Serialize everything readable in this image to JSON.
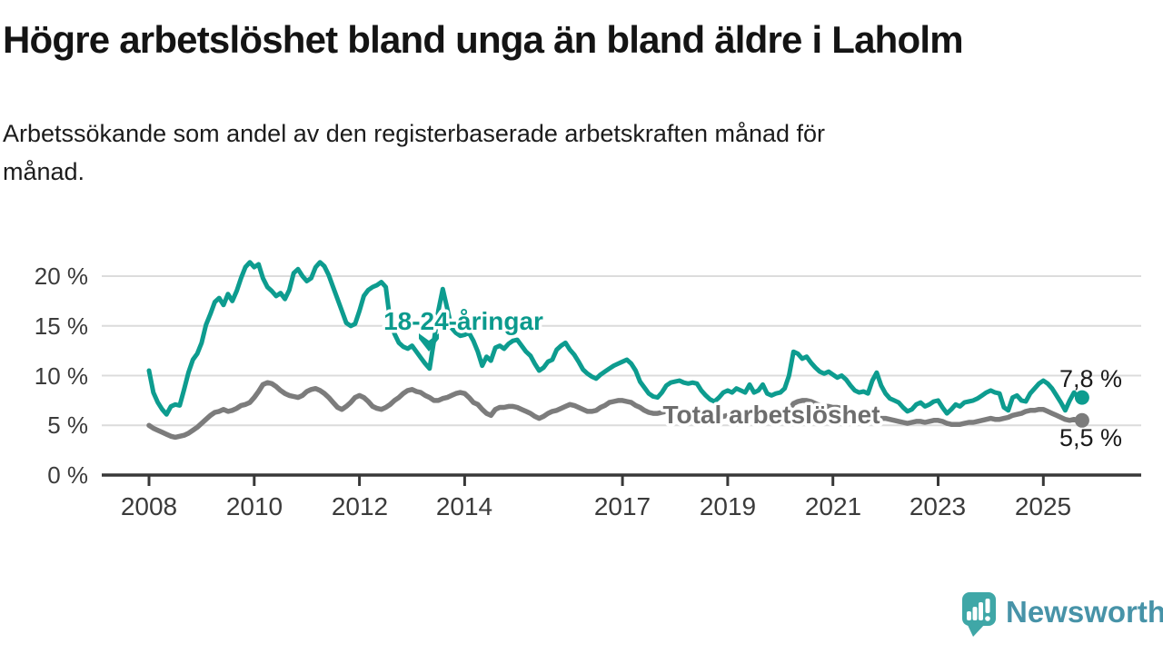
{
  "header": {
    "title": "Högre arbetslöshet bland unga än bland äldre i Laholm",
    "subtitle_lines": [
      "Arbetssökande som andel av den registerbaserade arbetskraften månad för",
      "månad."
    ]
  },
  "chart_data": {
    "type": "line",
    "unit": "%",
    "grid": "horizontal",
    "legend_position": "inline-labels",
    "x_start_year": 2008,
    "x_interval": "monthly",
    "x_range": [
      2008.0,
      2025.75
    ],
    "ylim": [
      0,
      22
    ],
    "y_ticks": [
      {
        "value": 0,
        "label": "0 %"
      },
      {
        "value": 5,
        "label": "5 %"
      },
      {
        "value": 10,
        "label": "10 %"
      },
      {
        "value": 15,
        "label": "15 %"
      },
      {
        "value": 20,
        "label": "20 %"
      }
    ],
    "x_ticks": [
      {
        "value": 2008,
        "label": "2008"
      },
      {
        "value": 2010,
        "label": "2010"
      },
      {
        "value": 2012,
        "label": "2012"
      },
      {
        "value": 2014,
        "label": "2014"
      },
      {
        "value": 2017,
        "label": "2017"
      },
      {
        "value": 2019,
        "label": "2019"
      },
      {
        "value": 2021,
        "label": "2021"
      },
      {
        "value": 2023,
        "label": "2023"
      },
      {
        "value": 2025,
        "label": "2025"
      }
    ],
    "series": [
      {
        "id": "youth",
        "name": "18-24-åringar",
        "color": "#0d9c8f",
        "label_color": "#0b9a8d",
        "width": 5,
        "end_value": 7.8,
        "end_label": "7,8 %",
        "values": [
          10.5,
          8.3,
          7.3,
          6.6,
          6.1,
          6.9,
          7.1,
          7.0,
          8.6,
          10.3,
          11.6,
          12.2,
          13.3,
          15.1,
          16.2,
          17.4,
          17.8,
          17.1,
          18.2,
          17.5,
          18.5,
          19.8,
          20.9,
          21.4,
          20.9,
          21.2,
          19.8,
          18.9,
          18.5,
          18.0,
          18.3,
          17.7,
          18.6,
          20.3,
          20.7,
          20.0,
          19.5,
          19.8,
          20.9,
          21.4,
          21.0,
          20.1,
          18.9,
          17.7,
          16.5,
          15.3,
          15.0,
          15.2,
          16.5,
          18.0,
          18.6,
          18.9,
          19.1,
          19.4,
          18.9,
          15.5,
          14.2,
          13.3,
          12.9,
          12.7,
          13.0,
          12.4,
          11.8,
          11.2,
          10.7,
          13.5,
          16.5,
          18.7,
          16.8,
          14.8,
          14.3,
          14.0,
          14.1,
          14.3,
          13.5,
          12.4,
          11.0,
          11.9,
          11.5,
          12.8,
          13.0,
          12.7,
          13.2,
          13.5,
          13.6,
          13.0,
          12.4,
          12.0,
          11.2,
          10.5,
          10.8,
          11.4,
          11.6,
          12.6,
          13.0,
          13.3,
          12.6,
          12.1,
          11.4,
          10.6,
          10.2,
          9.9,
          9.7,
          10.1,
          10.4,
          10.7,
          11.0,
          11.2,
          11.4,
          11.6,
          11.2,
          10.5,
          9.4,
          8.8,
          8.2,
          7.9,
          7.8,
          8.3,
          9.0,
          9.3,
          9.4,
          9.5,
          9.3,
          9.2,
          9.3,
          9.2,
          8.5,
          8.0,
          7.6,
          7.4,
          7.8,
          8.3,
          8.5,
          8.3,
          8.7,
          8.5,
          8.3,
          9.1,
          8.3,
          8.5,
          9.1,
          8.2,
          8.0,
          8.2,
          8.3,
          8.7,
          10.0,
          12.4,
          12.2,
          11.7,
          11.9,
          11.3,
          10.8,
          10.4,
          10.2,
          10.4,
          10.1,
          9.8,
          10.0,
          9.6,
          9.0,
          8.5,
          8.3,
          8.4,
          8.2,
          9.5,
          10.3,
          9.0,
          8.2,
          7.7,
          7.5,
          7.3,
          6.8,
          6.4,
          6.6,
          7.1,
          7.3,
          6.9,
          7.1,
          7.4,
          7.5,
          6.8,
          6.2,
          6.6,
          7.1,
          6.9,
          7.3,
          7.4,
          7.5,
          7.7,
          8.0,
          8.3,
          8.5,
          8.3,
          8.2,
          6.8,
          6.5,
          7.8,
          8.0,
          7.5,
          7.4,
          8.2,
          8.7,
          9.2,
          9.5,
          9.2,
          8.7,
          8.0,
          7.3,
          6.5,
          7.5,
          8.3,
          7.8
        ]
      },
      {
        "id": "total",
        "name": "Total arbetslöshet",
        "color": "#7c7c7c",
        "label_color": "#6d6d6d",
        "width": 5.5,
        "end_value": 5.5,
        "end_label": "5,5 %",
        "values": [
          5.0,
          4.7,
          4.5,
          4.3,
          4.1,
          3.9,
          3.8,
          3.9,
          4.0,
          4.2,
          4.5,
          4.8,
          5.2,
          5.6,
          6.0,
          6.3,
          6.4,
          6.6,
          6.4,
          6.5,
          6.7,
          7.0,
          7.1,
          7.3,
          7.8,
          8.4,
          9.1,
          9.3,
          9.2,
          8.9,
          8.5,
          8.2,
          8.0,
          7.9,
          7.8,
          8.0,
          8.4,
          8.6,
          8.7,
          8.5,
          8.2,
          7.8,
          7.3,
          6.8,
          6.6,
          6.9,
          7.3,
          7.8,
          8.0,
          7.8,
          7.4,
          6.9,
          6.7,
          6.6,
          6.8,
          7.1,
          7.5,
          7.8,
          8.2,
          8.5,
          8.6,
          8.4,
          8.3,
          8.0,
          7.8,
          7.5,
          7.5,
          7.7,
          7.8,
          8.0,
          8.2,
          8.3,
          8.2,
          7.8,
          7.3,
          7.1,
          6.6,
          6.2,
          6.0,
          6.6,
          6.8,
          6.8,
          6.9,
          6.9,
          6.8,
          6.6,
          6.4,
          6.2,
          5.9,
          5.7,
          5.9,
          6.2,
          6.4,
          6.5,
          6.7,
          6.9,
          7.1,
          7.0,
          6.8,
          6.6,
          6.4,
          6.4,
          6.5,
          6.8,
          7.0,
          7.3,
          7.4,
          7.5,
          7.5,
          7.4,
          7.3,
          7.0,
          6.8,
          6.5,
          6.3,
          6.2,
          6.2,
          6.3,
          6.4,
          6.5,
          6.5,
          6.4,
          6.3,
          6.2,
          6.1,
          6.0,
          5.9,
          5.8,
          5.7,
          5.7,
          5.8,
          5.9,
          6.0,
          6.0,
          5.9,
          5.9,
          5.8,
          5.9,
          5.9,
          5.8,
          5.9,
          5.8,
          5.8,
          5.9,
          6.0,
          6.1,
          6.5,
          7.2,
          7.4,
          7.5,
          7.5,
          7.4,
          7.2,
          7.0,
          6.9,
          6.9,
          6.8,
          6.8,
          6.7,
          6.6,
          6.4,
          6.2,
          6.1,
          6.0,
          5.9,
          5.8,
          5.7,
          5.7,
          5.7,
          5.6,
          5.5,
          5.4,
          5.3,
          5.2,
          5.3,
          5.4,
          5.4,
          5.3,
          5.4,
          5.5,
          5.5,
          5.4,
          5.2,
          5.1,
          5.1,
          5.1,
          5.2,
          5.3,
          5.3,
          5.4,
          5.5,
          5.6,
          5.7,
          5.6,
          5.6,
          5.7,
          5.8,
          6.0,
          6.1,
          6.2,
          6.4,
          6.5,
          6.5,
          6.6,
          6.6,
          6.4,
          6.2,
          6.0,
          5.8,
          5.6,
          5.5,
          5.6,
          5.5
        ]
      }
    ],
    "style": {
      "grid_color": "#dcdcdc",
      "axis_color": "#383838",
      "tick_label_color": "#3b3b3b",
      "end_label_color": "#1a1a1a"
    }
  },
  "footer": {
    "brand": "Newsworthy",
    "brand_color": "#4793a8",
    "logo_color": "#3fa7a7"
  }
}
